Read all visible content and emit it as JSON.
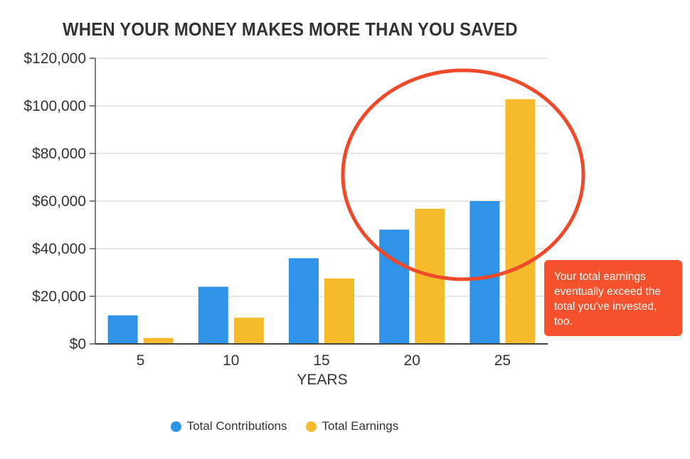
{
  "chart_data": {
    "type": "bar",
    "title": "WHEN YOUR MONEY MAKES MORE THAN YOU SAVED",
    "xlabel": "YEARS",
    "ylabel": "",
    "categories": [
      "5",
      "10",
      "15",
      "20",
      "25"
    ],
    "series": [
      {
        "name": "Total Contributions",
        "color": "#2f94e8",
        "values": [
          12000,
          24000,
          36000,
          48000,
          60000
        ]
      },
      {
        "name": "Total Earnings",
        "color": "#f6bb2c",
        "values": [
          2500,
          11000,
          27500,
          56800,
          102800
        ]
      }
    ],
    "ylim": [
      0,
      120000
    ],
    "yticks": [
      0,
      20000,
      40000,
      60000,
      80000,
      100000,
      120000
    ],
    "ytick_labels": [
      "$0",
      "$20,000",
      "$40,000",
      "$60,000",
      "$80,000",
      "$100,000",
      "$120,000"
    ],
    "grid": true,
    "legend_position": "bottom",
    "annotation": {
      "text": "Your total earnings eventually exceed the total you've invested, too.",
      "color": "#f4512c",
      "highlight_color": "#f0492a"
    }
  }
}
